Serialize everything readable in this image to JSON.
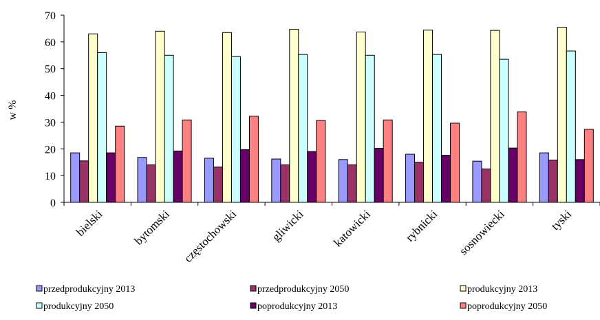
{
  "chart_data": {
    "type": "bar",
    "title": "",
    "xlabel": "",
    "ylabel": "w %",
    "ylim": [
      0,
      70
    ],
    "yticks": [
      0,
      10,
      20,
      30,
      40,
      50,
      60,
      70
    ],
    "grid": false,
    "legend_position": "bottom",
    "categories": [
      "bielski",
      "bytomski",
      "częstochowski",
      "gliwicki",
      "katowicki",
      "rybnicki",
      "sosnowiecki",
      "tyski"
    ],
    "series": [
      {
        "name": "przedprodukcyjny 2013",
        "color": "#9999ff",
        "values": [
          18.5,
          16.8,
          16.5,
          16.2,
          16.0,
          18.0,
          15.4,
          18.5
        ]
      },
      {
        "name": "przedprodukcyjny 2050",
        "color": "#993366",
        "values": [
          15.5,
          14.0,
          13.2,
          14.0,
          14.0,
          15.0,
          12.5,
          15.8
        ]
      },
      {
        "name": "produkcyjny 2013",
        "color": "#ffffcc",
        "values": [
          63.0,
          64.0,
          63.5,
          64.7,
          63.7,
          64.4,
          64.3,
          65.5
        ]
      },
      {
        "name": "produkcyjny 2050",
        "color": "#ccffff",
        "values": [
          56.0,
          55.0,
          54.5,
          55.3,
          55.0,
          55.3,
          53.5,
          56.6
        ]
      },
      {
        "name": "poprodukcyjny 2013",
        "color": "#660066",
        "values": [
          18.5,
          19.2,
          19.7,
          19.0,
          20.2,
          17.6,
          20.3,
          16.0
        ]
      },
      {
        "name": "poprodukcyjny 2050",
        "color": "#ff8080",
        "values": [
          28.5,
          30.8,
          32.2,
          30.6,
          30.8,
          29.6,
          33.8,
          27.3
        ]
      }
    ]
  }
}
